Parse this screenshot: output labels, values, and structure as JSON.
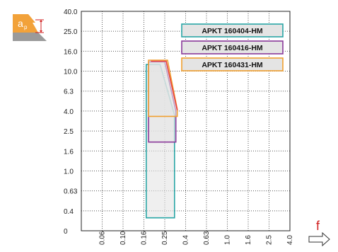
{
  "chart_data": {
    "type": "area",
    "x_label": "f",
    "y_label": "ap",
    "x_ticks": [
      "0.06",
      "0.10",
      "0.16",
      "0.25",
      "0.4",
      "0.63",
      "1.0",
      "1.6",
      "2.5",
      "4.0"
    ],
    "y_ticks": [
      "40.0",
      "25.0",
      "16.0",
      "10.0",
      "6.3",
      "4.0",
      "2.5",
      "1.6",
      "1.0",
      "0.63",
      "0.4",
      "0"
    ],
    "grid": true,
    "legend_position": "top-right",
    "series": [
      {
        "name": "APKT 160404-HM",
        "color": "#2aa6a6",
        "fill": "#e4e4e4",
        "points": [
          [
            0.17,
            0.26
          ],
          [
            0.17,
            12.0
          ],
          [
            0.23,
            12.0
          ],
          [
            0.32,
            3.7
          ],
          [
            0.32,
            0.26
          ]
        ]
      },
      {
        "name": "APKT 160416-HM",
        "color": "#8a3a9a",
        "fill": "#e4e4e4",
        "points": [
          [
            0.18,
            2.0
          ],
          [
            0.18,
            12.8
          ],
          [
            0.25,
            12.8
          ],
          [
            0.33,
            4.0
          ],
          [
            0.33,
            2.0
          ]
        ]
      },
      {
        "name": "APKT 160431-HM",
        "color": "#f0a030",
        "fill": "#e4e4e4",
        "points": [
          [
            0.18,
            3.6
          ],
          [
            0.18,
            13.3
          ],
          [
            0.27,
            13.3
          ],
          [
            0.34,
            4.2
          ],
          [
            0.34,
            3.6
          ]
        ]
      }
    ],
    "extra_lines": [
      {
        "color": "#e83e3e",
        "points": [
          [
            0.19,
            13.0
          ],
          [
            0.26,
            13.0
          ],
          [
            0.34,
            4.1
          ]
        ]
      }
    ]
  },
  "icon": {
    "name": "ap-depth-icon",
    "label": "a",
    "subscript": "p"
  },
  "arrow": {
    "name": "feed-arrow-icon"
  }
}
